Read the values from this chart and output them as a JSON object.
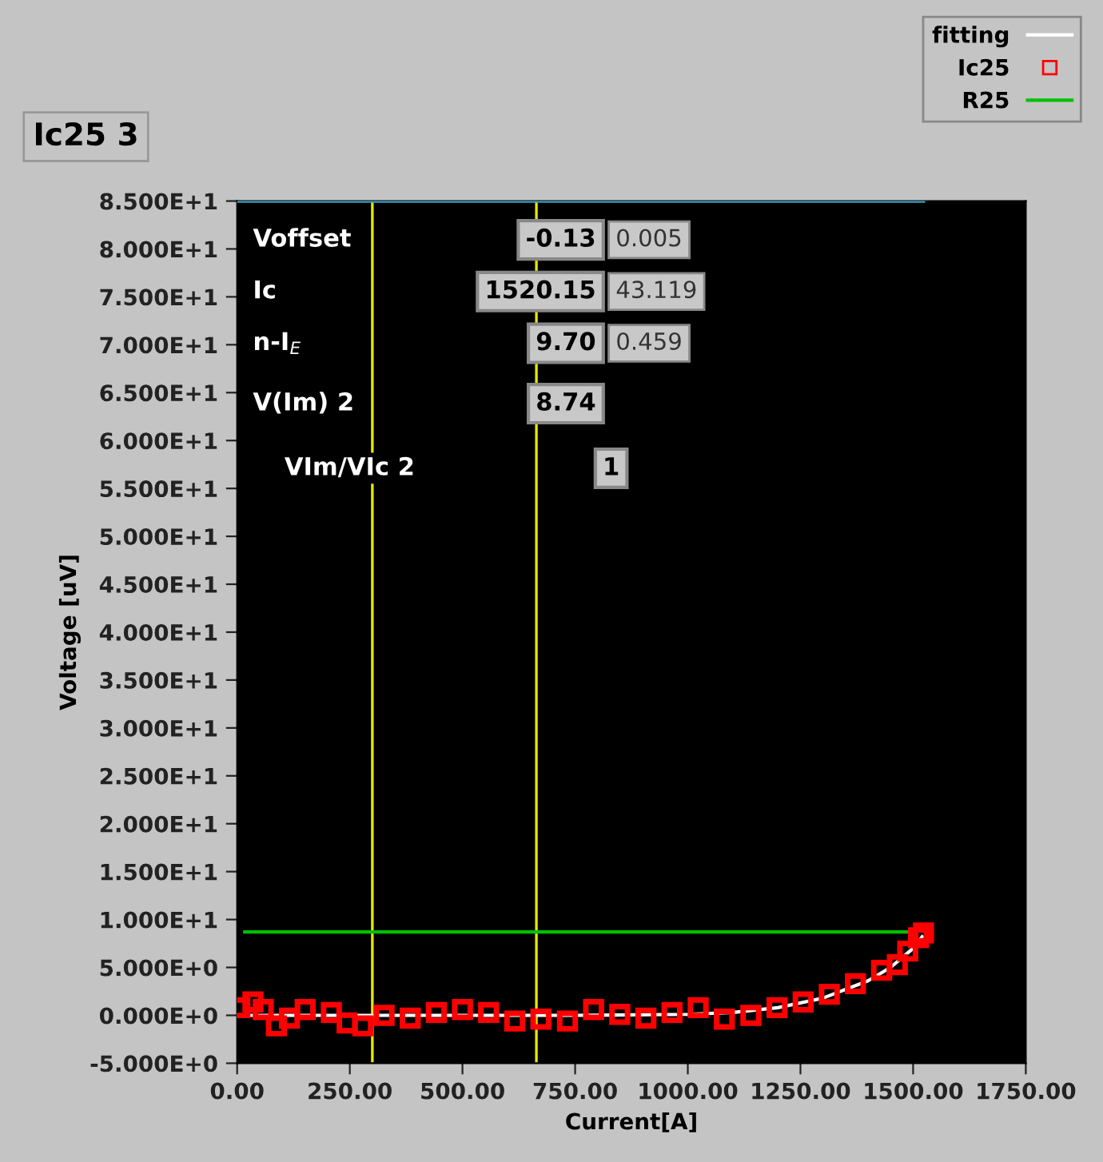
{
  "chart_data": {
    "type": "line",
    "title": "Ic25 3",
    "xlabel": "Current[A]",
    "ylabel": "Voltage [uV]",
    "xlim": [
      0,
      1750
    ],
    "ylim": [
      -5,
      85
    ],
    "xticks": [
      {
        "value": 0,
        "label": "0.00"
      },
      {
        "value": 250,
        "label": "250.00"
      },
      {
        "value": 500,
        "label": "500.00"
      },
      {
        "value": 750,
        "label": "750.00"
      },
      {
        "value": 1000,
        "label": "1000.00"
      },
      {
        "value": 1250,
        "label": "1250.00"
      },
      {
        "value": 1500,
        "label": "1500.00"
      },
      {
        "value": 1750,
        "label": "1750.00"
      }
    ],
    "yticks": [
      {
        "value": -5,
        "label": "-5.000E+0"
      },
      {
        "value": 0,
        "label": "0.000E+0"
      },
      {
        "value": 5,
        "label": "5.000E+0"
      },
      {
        "value": 10,
        "label": "1.000E+1"
      },
      {
        "value": 15,
        "label": "1.500E+1"
      },
      {
        "value": 20,
        "label": "2.000E+1"
      },
      {
        "value": 25,
        "label": "2.500E+1"
      },
      {
        "value": 30,
        "label": "3.000E+1"
      },
      {
        "value": 35,
        "label": "3.500E+1"
      },
      {
        "value": 40,
        "label": "4.000E+1"
      },
      {
        "value": 45,
        "label": "4.500E+1"
      },
      {
        "value": 50,
        "label": "5.000E+1"
      },
      {
        "value": 55,
        "label": "5.500E+1"
      },
      {
        "value": 60,
        "label": "6.000E+1"
      },
      {
        "value": 65,
        "label": "6.500E+1"
      },
      {
        "value": 70,
        "label": "7.000E+1"
      },
      {
        "value": 75,
        "label": "7.500E+1"
      },
      {
        "value": 80,
        "label": "8.000E+1"
      },
      {
        "value": 85,
        "label": "8.500E+1"
      }
    ],
    "grid": false,
    "legend": "top right",
    "series": [
      {
        "name": "fitting",
        "color": "#ffffff",
        "x": [
          0,
          250,
          500,
          750,
          1000,
          1100,
          1200,
          1300,
          1400,
          1450,
          1500,
          1520
        ],
        "values": [
          0,
          0,
          0,
          0,
          0.1,
          0.3,
          0.8,
          1.8,
          3.6,
          5.0,
          7.0,
          8.2
        ]
      },
      {
        "name": "Ic25",
        "type": "scatter",
        "marker": "square",
        "color": "#ff0000",
        "x": [
          6,
          35,
          58,
          87,
          116,
          151,
          209,
          244,
          279,
          326,
          384,
          442,
          500,
          558,
          616,
          674,
          733,
          791,
          849,
          907,
          965,
          1023,
          1081,
          1140,
          1198,
          1256,
          1314,
          1372,
          1430,
          1465,
          1488,
          1512,
          1523
        ],
        "values": [
          0.8,
          1.4,
          0.6,
          -1.1,
          -0.3,
          0.6,
          0.3,
          -0.8,
          -1.1,
          0,
          -0.3,
          0.3,
          0.6,
          0.3,
          -0.6,
          -0.4,
          -0.6,
          0.6,
          0.1,
          -0.3,
          0.3,
          0.8,
          -0.4,
          0,
          0.8,
          1.4,
          2.2,
          3.3,
          4.7,
          5.3,
          6.7,
          8.1,
          8.6
        ]
      },
      {
        "name": "R25",
        "color": "#00c000",
        "x": [
          17,
          1500
        ],
        "values": [
          8.7,
          8.7
        ]
      },
      {
        "color": "#3aa0c8",
        "x": [
          0,
          1523
        ],
        "values": [
          85,
          85
        ]
      }
    ],
    "ref_lines": [
      {
        "axis": "x",
        "value": 300,
        "color": "#e8e800"
      },
      {
        "axis": "x",
        "value": 664,
        "color": "#e8e800"
      }
    ],
    "annotations": [
      "Voffset",
      "-0.13",
      "0.005",
      "Ic",
      "1520.15",
      "43.119",
      "n-I$_{E}$",
      "9.70",
      "0.459",
      "V(Im) 2",
      "8.74",
      "VIm/VIc 2",
      "1"
    ]
  }
}
